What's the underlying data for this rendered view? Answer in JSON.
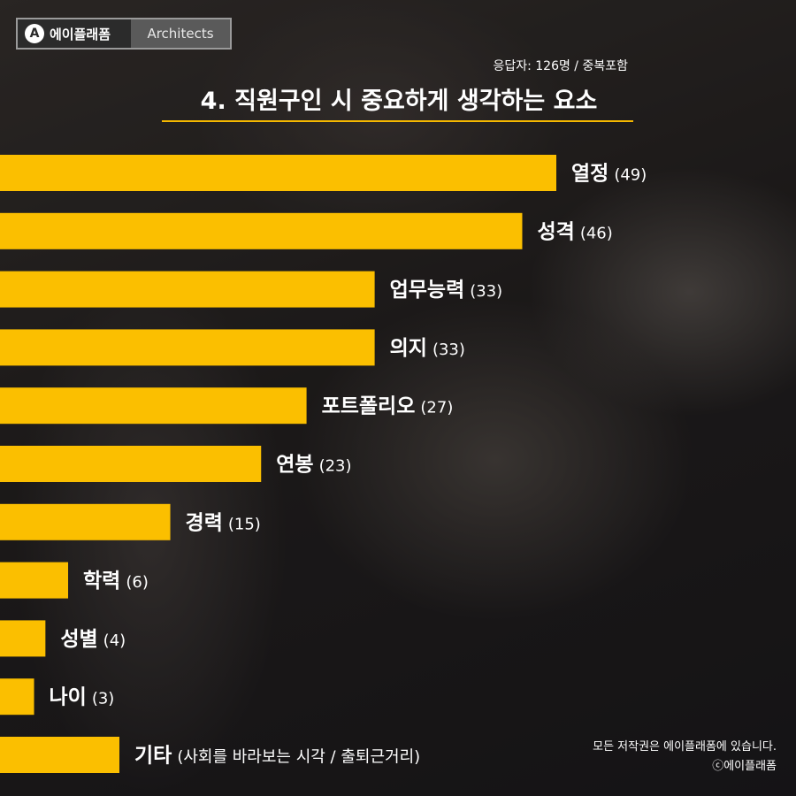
{
  "brand": {
    "logo_letter": "A",
    "name": "에이플래폼",
    "tag": "Architects"
  },
  "header": {
    "respondents": "응답자: 126명 / 중복포함",
    "title": "4. 직원구인 시 중요하게 생각하는 요소",
    "accent_color": "#f5b800"
  },
  "chart_data": {
    "type": "bar",
    "orientation": "horizontal",
    "categories": [
      "열정",
      "성격",
      "업무능력",
      "의지",
      "포트폴리오",
      "연봉",
      "경력",
      "학력",
      "성별",
      "나이",
      "기타"
    ],
    "values": [
      49,
      46,
      33,
      33,
      27,
      23,
      15,
      6,
      4,
      3,
      null
    ],
    "value_labels": [
      "(49)",
      "(46)",
      "(33)",
      "(33)",
      "(27)",
      "(23)",
      "(15)",
      "(6)",
      "(4)",
      "(3)",
      "(사회를 바라보는 시각 / 출퇴근거리)"
    ],
    "bar_color": "#fbbf00",
    "label_color": "#ffffff",
    "xlim": [
      0,
      49
    ]
  },
  "footer": {
    "copyright": "모든 저작권은 에이플래폼에 있습니다.",
    "credit": "ⓒ에이플래폼"
  }
}
